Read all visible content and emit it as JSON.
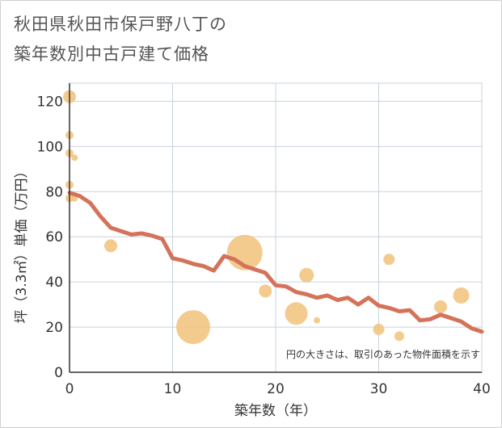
{
  "title_lines": [
    "秋田県秋田市保戸野八丁の",
    "築年数別中古戸建て価格"
  ],
  "chart_data": {
    "type": "scatter",
    "title": "秋田県秋田市保戸野八丁の築年数別中古戸建て価格",
    "xlabel": "築年数（年）",
    "ylabel": "坪（3.3㎡）単価（万円）",
    "xlim": [
      0,
      40
    ],
    "ylim": [
      0,
      128
    ],
    "xticks": [
      0,
      10,
      20,
      30,
      40
    ],
    "yticks": [
      0,
      20,
      40,
      60,
      80,
      100,
      120
    ],
    "note": "円の大きさは、取引のあった物件面積を示す",
    "colors": {
      "bubble": "#f2c27a",
      "line": "#d4735a",
      "grid": "#c8d3dc",
      "axis": "#333333"
    },
    "bubbles": [
      {
        "x": 0,
        "y": 122,
        "size": 8
      },
      {
        "x": 0,
        "y": 105,
        "size": 5
      },
      {
        "x": 0,
        "y": 97,
        "size": 5
      },
      {
        "x": 0,
        "y": 83,
        "size": 5
      },
      {
        "x": 0,
        "y": 77,
        "size": 5
      },
      {
        "x": 0.5,
        "y": 95,
        "size": 4
      },
      {
        "x": 0.5,
        "y": 77,
        "size": 4
      },
      {
        "x": 4,
        "y": 56,
        "size": 8
      },
      {
        "x": 12,
        "y": 20,
        "size": 21
      },
      {
        "x": 17,
        "y": 53,
        "size": 22
      },
      {
        "x": 19,
        "y": 36,
        "size": 8
      },
      {
        "x": 22,
        "y": 26,
        "size": 14
      },
      {
        "x": 23,
        "y": 43,
        "size": 9
      },
      {
        "x": 24,
        "y": 23,
        "size": 4
      },
      {
        "x": 30,
        "y": 19,
        "size": 7
      },
      {
        "x": 31,
        "y": 50,
        "size": 7
      },
      {
        "x": 32,
        "y": 16,
        "size": 6
      },
      {
        "x": 36,
        "y": 29,
        "size": 8
      },
      {
        "x": 38,
        "y": 34,
        "size": 10
      }
    ],
    "trend": {
      "x": [
        0,
        1,
        2,
        3,
        4,
        5,
        6,
        7,
        8,
        9,
        10,
        11,
        12,
        13,
        14,
        15,
        16,
        17,
        18,
        19,
        20,
        21,
        22,
        23,
        24,
        25,
        26,
        27,
        28,
        29,
        30,
        31,
        32,
        33,
        34,
        35,
        36,
        37,
        38,
        39,
        40
      ],
      "y": [
        79.5,
        78,
        75,
        69,
        64,
        62.5,
        61,
        61.5,
        60.5,
        59,
        50.5,
        49.5,
        48,
        47,
        45,
        51.5,
        50,
        47,
        45.5,
        44,
        38.5,
        38,
        35.5,
        34.5,
        33,
        34,
        32,
        33,
        30,
        33,
        29.5,
        28.5,
        27,
        27.5,
        23,
        23.5,
        25.5,
        24,
        22.5,
        19.5,
        18
      ]
    }
  }
}
